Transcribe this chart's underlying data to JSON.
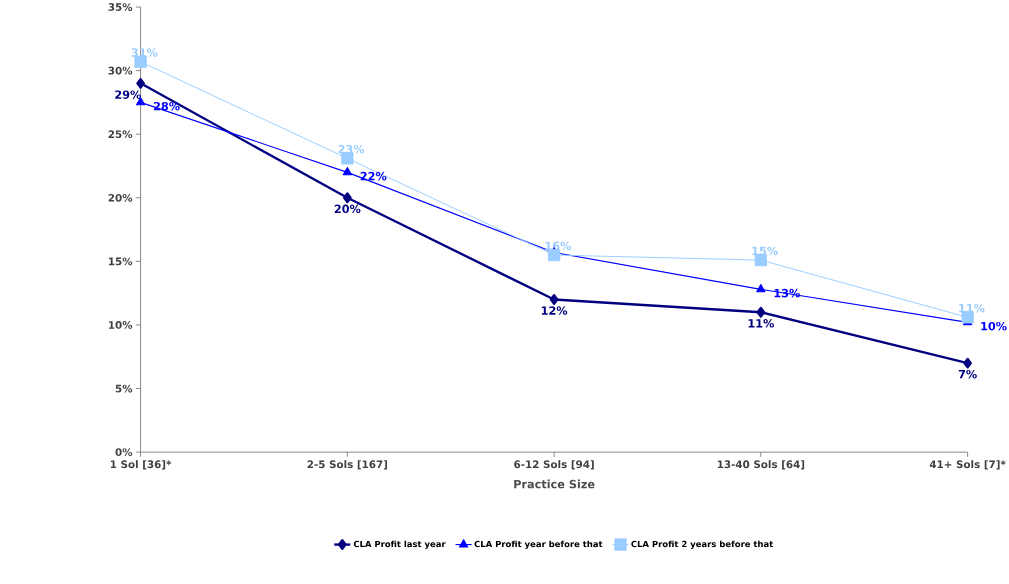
{
  "chart_data": {
    "type": "line",
    "xlabel": "Practice Size",
    "categories": [
      "1 Sol [36]*",
      "2-5 Sols [167]",
      "6-12 Sols [94]",
      "13-40 Sols [64]",
      "41+ Sols [7]*"
    ],
    "ylim": [
      0,
      35
    ],
    "yticks": [
      {
        "value": 0,
        "label": "0%"
      },
      {
        "value": 5,
        "label": "5%"
      },
      {
        "value": 10,
        "label": "10%"
      },
      {
        "value": 15,
        "label": "15%"
      },
      {
        "value": 20,
        "label": "20%"
      },
      {
        "value": 25,
        "label": "25%"
      },
      {
        "value": 30,
        "label": "30%"
      },
      {
        "value": 35,
        "label": "35%"
      }
    ],
    "series": [
      {
        "name": "CLA Profit last year",
        "color": "#000080",
        "marker": "diamond",
        "values": [
          29,
          20,
          12,
          11,
          7
        ],
        "value_labels": [
          "29%",
          "20%",
          "12%",
          "11%",
          "7%"
        ]
      },
      {
        "name": "CLA Profit year before that",
        "color": "#0000ff",
        "marker": "triangle",
        "values": [
          27.5,
          22,
          15.7,
          12.8,
          10.2
        ],
        "value_labels": [
          "28%",
          "22%",
          null,
          "13%",
          "10%"
        ]
      },
      {
        "name": "CLA Profit 2 years before that",
        "color": "#99ccff",
        "marker": "square",
        "values": [
          30.7,
          23.1,
          15.5,
          15.1,
          10.6
        ],
        "value_labels": [
          "31%",
          "23%",
          "16%",
          "15%",
          "11%"
        ]
      }
    ],
    "grid": false,
    "legend": "bottom"
  }
}
